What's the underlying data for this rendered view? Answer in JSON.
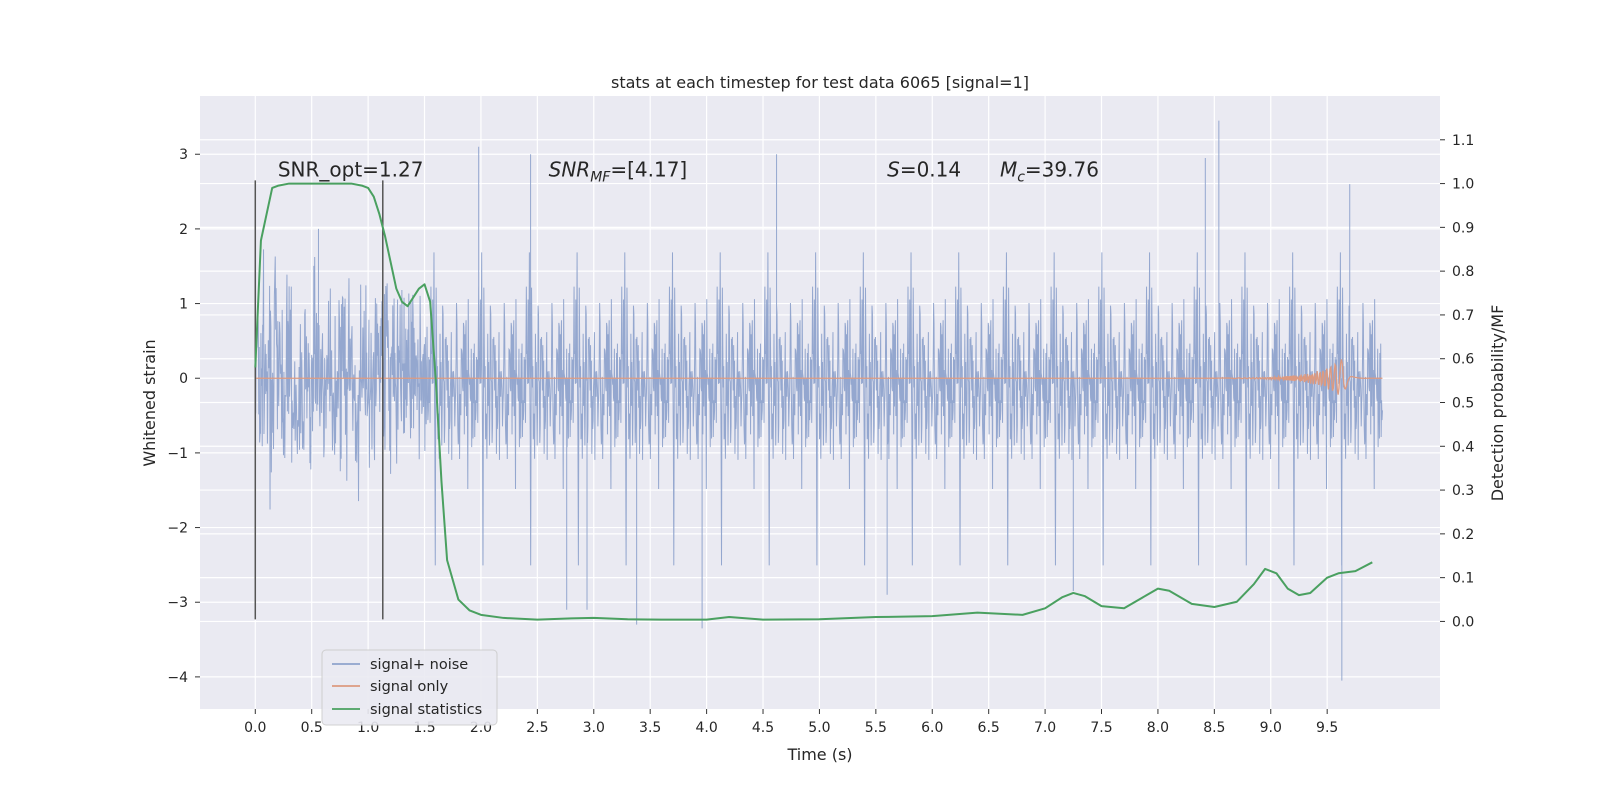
{
  "chart_data": {
    "type": "line",
    "title": "stats at each timestep for test data 6065 [signal=1]",
    "xlabel": "Time (s)",
    "ylabel": "Whitened strain",
    "ylabel_right": "Detection probability/MF",
    "xlim": [
      -0.49,
      10.5
    ],
    "ylim": [
      -4.43,
      3.78
    ],
    "ylim_right": [
      -0.2,
      1.2
    ],
    "x_ticks": [
      0.0,
      0.5,
      1.0,
      1.5,
      2.0,
      2.5,
      3.0,
      3.5,
      4.0,
      4.5,
      5.0,
      5.5,
      6.0,
      6.5,
      7.0,
      7.5,
      8.0,
      8.5,
      9.0,
      9.5
    ],
    "x_tick_labels": [
      "0.0",
      "0.5",
      "1.0",
      "1.5",
      "2.0",
      "2.5",
      "3.0",
      "3.5",
      "4.0",
      "4.5",
      "5.0",
      "5.5",
      "6.0",
      "6.5",
      "7.0",
      "7.5",
      "8.0",
      "8.5",
      "9.0",
      "9.5"
    ],
    "y_ticks": [
      -4,
      -3,
      -2,
      -1,
      0,
      1,
      2,
      3
    ],
    "y_tick_labels": [
      "−4",
      "−3",
      "−2",
      "−1",
      "0",
      "1",
      "2",
      "3"
    ],
    "y_right_ticks": [
      0.0,
      0.1,
      0.2,
      0.3,
      0.4,
      0.5,
      0.6,
      0.7,
      0.8,
      0.9,
      1.0,
      1.1
    ],
    "y_right_tick_labels": [
      "0.0",
      "0.1",
      "0.2",
      "0.3",
      "0.4",
      "0.5",
      "0.6",
      "0.7",
      "0.8",
      "0.9",
      "1.0",
      "1.1"
    ],
    "grid": true,
    "legend_position": "lower-left",
    "annotations": [
      {
        "text": "SNR_opt=1.27",
        "x": 0.2
      },
      {
        "text": "SNR",
        "sub": "MF",
        "suffix": "=[4.17]",
        "italic": true,
        "x": 2.6
      },
      {
        "text": "S",
        "suffix": "=0.14",
        "italic": true,
        "x": 5.6
      },
      {
        "text": "M",
        "sub": "c",
        "suffix": "=39.76",
        "italic": true,
        "x": 6.6
      }
    ],
    "annotation_y": 2.7,
    "vertical_lines": [
      {
        "x": 0.0,
        "y_range": [
          -3.23,
          2.65
        ]
      },
      {
        "x": 1.13,
        "y_range": [
          -3.23,
          2.65
        ]
      }
    ],
    "series": [
      {
        "name": "signal+ noise",
        "color": "#8fa3cc",
        "t_range": [
          0.0,
          9.99
        ],
        "envelope_sigma": 0.55,
        "peak_points": [
          [
            0.56,
            2.0
          ],
          [
            1.98,
            3.1
          ],
          [
            2.44,
            3.0
          ],
          [
            3.38,
            -3.3
          ],
          [
            3.96,
            -3.35
          ],
          [
            4.62,
            3.0
          ],
          [
            8.54,
            3.45
          ],
          [
            8.42,
            2.95
          ],
          [
            9.63,
            -4.05
          ],
          [
            2.76,
            -3.1
          ],
          [
            2.94,
            -3.1
          ],
          [
            5.6,
            -2.9
          ],
          [
            7.25,
            -2.85
          ],
          [
            9.7,
            2.6
          ]
        ]
      },
      {
        "name": "signal only",
        "color": "#dd9a80",
        "t_range": [
          0.0,
          9.99
        ],
        "chirp_peak_t": 9.64,
        "chirp_peak_amp": 0.27
      },
      {
        "name": "signal statistics",
        "color": "#4aa060",
        "axis": "right",
        "x": [
          0.0,
          0.05,
          0.1,
          0.15,
          0.2,
          0.3,
          0.5,
          0.7,
          0.85,
          0.95,
          1.0,
          1.05,
          1.1,
          1.15,
          1.2,
          1.25,
          1.3,
          1.35,
          1.4,
          1.45,
          1.5,
          1.55,
          1.6,
          1.65,
          1.7,
          1.8,
          1.9,
          2.0,
          2.2,
          2.5,
          2.8,
          3.0,
          3.3,
          3.6,
          4.0,
          4.2,
          4.5,
          5.0,
          5.5,
          6.0,
          6.4,
          6.8,
          7.0,
          7.15,
          7.25,
          7.35,
          7.5,
          7.7,
          7.9,
          8.0,
          8.1,
          8.3,
          8.5,
          8.7,
          8.85,
          8.95,
          9.05,
          9.15,
          9.25,
          9.35,
          9.5,
          9.6,
          9.75,
          9.9
        ],
        "y": [
          0.58,
          0.87,
          0.93,
          0.99,
          0.995,
          1.0,
          1.0,
          1.0,
          1.0,
          0.995,
          0.99,
          0.97,
          0.93,
          0.88,
          0.82,
          0.76,
          0.73,
          0.72,
          0.74,
          0.76,
          0.77,
          0.73,
          0.55,
          0.32,
          0.14,
          0.05,
          0.025,
          0.015,
          0.008,
          0.004,
          0.007,
          0.008,
          0.005,
          0.004,
          0.004,
          0.01,
          0.004,
          0.005,
          0.01,
          0.012,
          0.02,
          0.015,
          0.03,
          0.055,
          0.065,
          0.058,
          0.035,
          0.03,
          0.06,
          0.075,
          0.07,
          0.04,
          0.033,
          0.045,
          0.085,
          0.12,
          0.11,
          0.075,
          0.06,
          0.065,
          0.1,
          0.11,
          0.115,
          0.135
        ]
      }
    ]
  }
}
